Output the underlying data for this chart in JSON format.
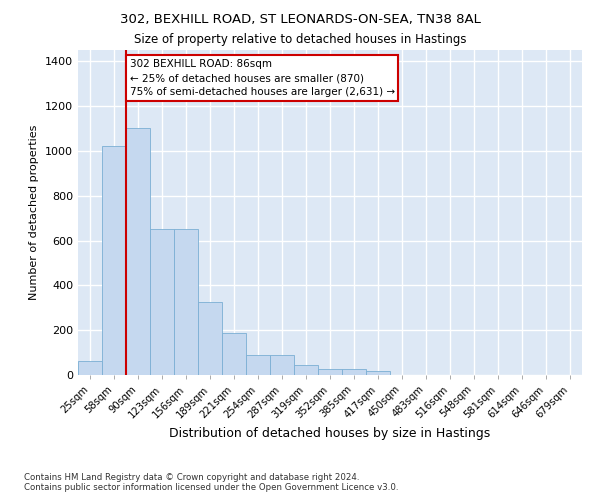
{
  "title1": "302, BEXHILL ROAD, ST LEONARDS-ON-SEA, TN38 8AL",
  "title2": "Size of property relative to detached houses in Hastings",
  "xlabel": "Distribution of detached houses by size in Hastings",
  "ylabel": "Number of detached properties",
  "footnote": "Contains HM Land Registry data © Crown copyright and database right 2024.\nContains public sector information licensed under the Open Government Licence v3.0.",
  "bar_color": "#c5d8ef",
  "bar_edge_color": "#7bafd4",
  "background_color": "#dde8f5",
  "grid_color": "#ffffff",
  "annotation_box_color": "#cc0000",
  "vline_color": "#cc0000",
  "categories": [
    "25sqm",
    "58sqm",
    "90sqm",
    "123sqm",
    "156sqm",
    "189sqm",
    "221sqm",
    "254sqm",
    "287sqm",
    "319sqm",
    "352sqm",
    "385sqm",
    "417sqm",
    "450sqm",
    "483sqm",
    "516sqm",
    "548sqm",
    "581sqm",
    "614sqm",
    "646sqm",
    "679sqm"
  ],
  "values": [
    63,
    1020,
    1100,
    650,
    650,
    325,
    188,
    90,
    88,
    45,
    28,
    25,
    18,
    0,
    0,
    0,
    0,
    0,
    0,
    0,
    0
  ],
  "ylim": [
    0,
    1450
  ],
  "yticks": [
    0,
    200,
    400,
    600,
    800,
    1000,
    1200,
    1400
  ],
  "annotation_text": "302 BEXHILL ROAD: 86sqm\n← 25% of detached houses are smaller (870)\n75% of semi-detached houses are larger (2,631) →",
  "bar_width": 1.0
}
